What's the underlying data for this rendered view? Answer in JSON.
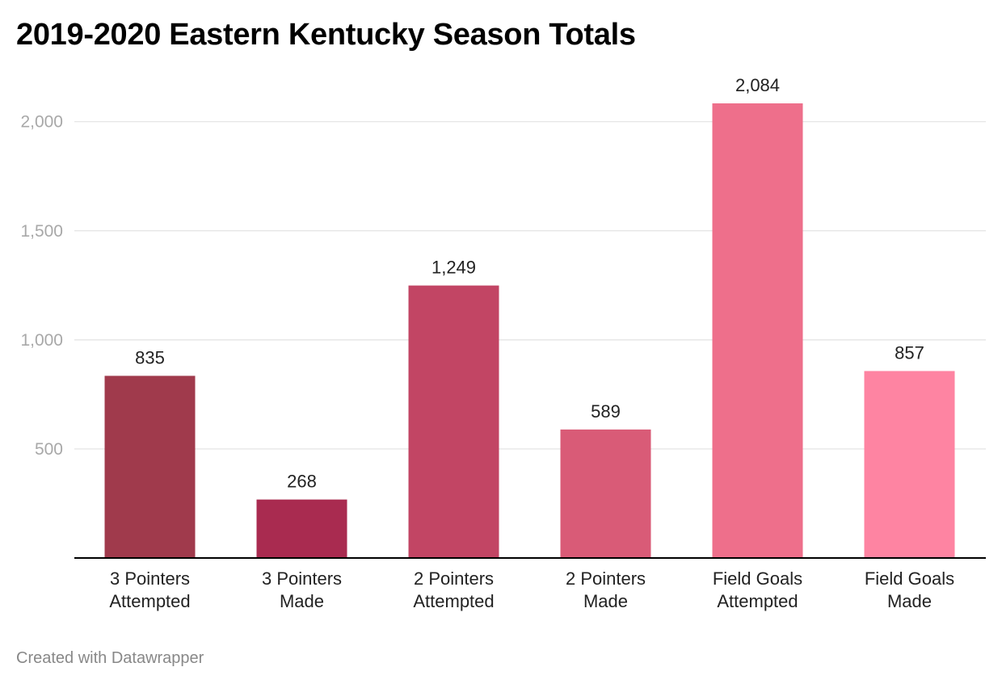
{
  "title": "2019-2020 Eastern Kentucky Season Totals",
  "footer": "Created with Datawrapper",
  "colors": {
    "bars": [
      "#a03a4c",
      "#a92b50",
      "#c24564",
      "#d95b77",
      "#ee6f8b",
      "#fe84a2"
    ],
    "gridline": "#e2e2e2",
    "baseline": "#000000",
    "tick_label": "#a8a8a8",
    "value_label": "#222222",
    "category_label": "#222222"
  },
  "chart_data": {
    "type": "bar",
    "title": "2019-2020 Eastern Kentucky Season Totals",
    "categories": [
      [
        "3 Pointers",
        "Attempted"
      ],
      [
        "3 Pointers",
        "Made"
      ],
      [
        "2 Pointers",
        "Attempted"
      ],
      [
        "2 Pointers",
        "Made"
      ],
      [
        "Field Goals",
        "Attempted"
      ],
      [
        "Field Goals",
        "Made"
      ]
    ],
    "values": [
      835,
      268,
      1249,
      589,
      2084,
      857
    ],
    "value_labels": [
      "835",
      "268",
      "1,249",
      "589",
      "2,084",
      "857"
    ],
    "yticks": [
      500,
      1000,
      1500,
      2000
    ],
    "ytick_labels": [
      "500",
      "1,000",
      "1,500",
      "2,000"
    ],
    "ylim": [
      0,
      2084
    ],
    "xlabel": "",
    "ylabel": "",
    "grid": true,
    "legend": "none"
  }
}
